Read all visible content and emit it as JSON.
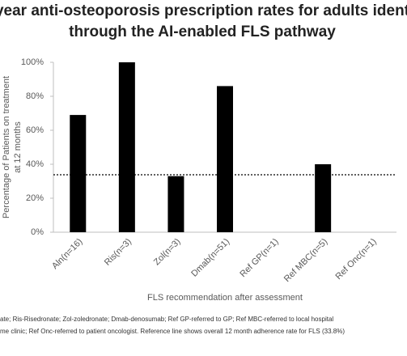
{
  "chart_data": {
    "type": "bar",
    "title": [
      "year anti-osteoporosis prescription rates for adults ident",
      "through the AI-enabled FLS pathway"
    ],
    "y_label": [
      "Percentage of Patients on treatment",
      "at 12 months"
    ],
    "x_label": "FLS recommendation after assessment",
    "categories": [
      "Aln(n=16)",
      "Ris(n=3)",
      "Zol(n=3)",
      "Dmab(n=51)",
      "Ref GP(n=1)",
      "Ref MBC(n=5)",
      "Ref Onc(n=1)"
    ],
    "values": [
      69,
      100,
      33,
      86,
      0,
      40,
      0
    ],
    "color": "#000000",
    "ylim": [
      0,
      100
    ],
    "yticks": [
      {
        "value": 0,
        "label": "0%"
      },
      {
        "value": 20,
        "label": "20%"
      },
      {
        "value": 40,
        "label": "40%"
      },
      {
        "value": 60,
        "label": "60%"
      },
      {
        "value": 80,
        "label": "80%"
      },
      {
        "value": 100,
        "label": "100%"
      }
    ],
    "reference_line": 33.8,
    "footnote": [
      "ate; Ris-Risedronate; Zol-zoledronate; Dmab-denosumab; Ref GP-referred to GP; Ref MBC-referred to local hospital",
      "me clinic; Ref Onc-referred to patient oncologist. Reference line shows overall 12 month adherence rate for FLS (33.8%)"
    ]
  }
}
